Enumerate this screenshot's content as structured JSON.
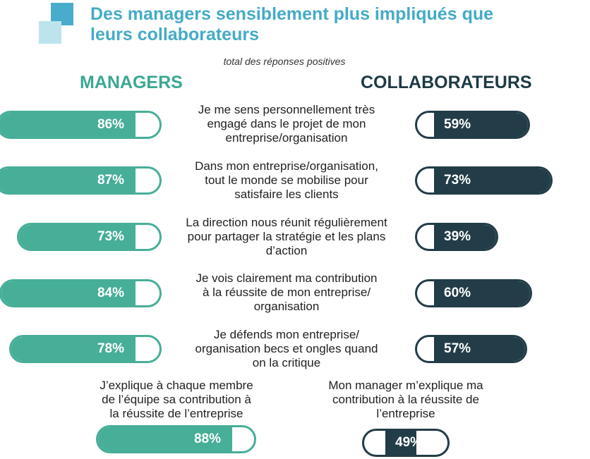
{
  "title": {
    "line1": "Des managers sensiblement plus impliqués que",
    "line2": "leurs collaborateurs"
  },
  "subtitle": "total des réponses positives",
  "colors": {
    "managers": "#47ae98",
    "collaborateurs": "#223d48",
    "title": "#44abc6"
  },
  "chart_data": {
    "type": "bar",
    "title": "Des managers sensiblement plus impliqués que leurs collaborateurs",
    "subtitle": "total des réponses positives",
    "xlim": [
      0,
      100
    ],
    "series_names": [
      "MANAGERS",
      "COLLABORATEURS"
    ],
    "rows": [
      {
        "statement": [
          "Je me sens personnellement très",
          "engagé dans le projet de mon",
          "entreprise/organisation"
        ],
        "managers": 86,
        "managers_label": "86%",
        "collaborateurs": 59,
        "collaborateurs_label": "59%"
      },
      {
        "statement": [
          "Dans mon entreprise/organisation,",
          "tout le monde se mobilise pour",
          "satisfaire les clients"
        ],
        "managers": 87,
        "managers_label": "87%",
        "collaborateurs": 73,
        "collaborateurs_label": "73%"
      },
      {
        "statement": [
          "La direction nous réunit régulièrement",
          "pour partager la stratégie et les plans",
          "d’action"
        ],
        "managers": 73,
        "managers_label": "73%",
        "collaborateurs": 39,
        "collaborateurs_label": "39%"
      },
      {
        "statement": [
          "Je vois clairement ma contribution",
          "à la réussite de mon entreprise/",
          "organisation"
        ],
        "managers": 84,
        "managers_label": "84%",
        "collaborateurs": 60,
        "collaborateurs_label": "60%"
      },
      {
        "statement": [
          "Je défends mon entreprise/",
          "organisation becs et ongles quand",
          "on la critique"
        ],
        "managers": 78,
        "managers_label": "78%",
        "collaborateurs": 57,
        "collaborateurs_label": "57%"
      }
    ],
    "extra": [
      {
        "series": "MANAGERS",
        "statement": [
          "J’explique à chaque membre",
          "de l’équipe sa contribution à",
          "la réussite de l’entreprise"
        ],
        "value": 88,
        "label": "88%"
      },
      {
        "series": "COLLABORATEURS",
        "statement": [
          "Mon manager m’explique ma",
          "contribution à la réussite de",
          "l’entreprise"
        ],
        "value": 49,
        "label": "49%"
      }
    ]
  }
}
